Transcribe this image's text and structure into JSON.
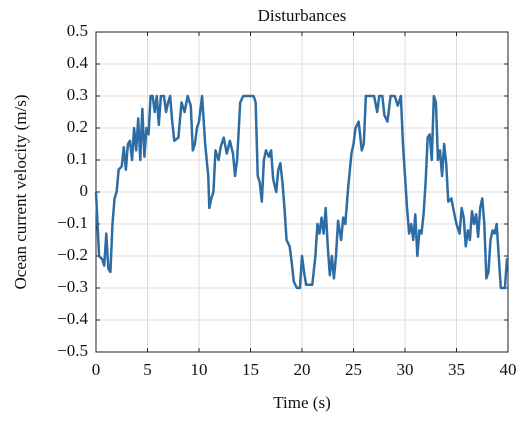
{
  "chart_data": {
    "type": "line",
    "title": "Disturbances",
    "x_label": "Time (s)",
    "y_label": "Ocean current velocity (m/s)",
    "color": "#2e6da4",
    "grid": true,
    "xlim": [
      0,
      40
    ],
    "xticks": [
      0,
      5,
      10,
      15,
      20,
      25,
      30,
      35,
      40
    ],
    "ylim": [
      -0.5,
      0.5
    ],
    "yticks": [
      {
        "value": -0.5,
        "label": "−0.5"
      },
      {
        "value": -0.4,
        "label": "−0.4"
      },
      {
        "value": -0.3,
        "label": "−0.3"
      },
      {
        "value": -0.2,
        "label": "−0.2"
      },
      {
        "value": -0.1,
        "label": "−0.1"
      },
      0,
      0.1,
      0.2,
      0.3,
      0.4,
      0.5
    ],
    "x": [
      0,
      0.3,
      0.6,
      0.8,
      1.0,
      1.2,
      1.4,
      1.6,
      1.8,
      2.0,
      2.2,
      2.5,
      2.7,
      2.9,
      3.1,
      3.3,
      3.5,
      3.7,
      3.9,
      4.1,
      4.3,
      4.5,
      4.7,
      4.9,
      5.1,
      5.3,
      5.5,
      5.7,
      5.9,
      6.1,
      6.3,
      6.6,
      6.8,
      7.0,
      7.2,
      7.4,
      7.6,
      8.0,
      8.3,
      8.6,
      8.9,
      9.2,
      9.4,
      9.6,
      9.8,
      10.0,
      10.3,
      10.6,
      10.9,
      11.0,
      11.2,
      11.4,
      11.6,
      11.9,
      12.1,
      12.4,
      12.7,
      13.0,
      13.3,
      13.5,
      13.7,
      14.0,
      14.3,
      14.8,
      15.3,
      15.5,
      15.7,
      15.9,
      16.1,
      16.3,
      16.5,
      16.8,
      17.0,
      17.2,
      17.5,
      17.7,
      17.9,
      18.1,
      18.3,
      18.5,
      18.8,
      19.0,
      19.2,
      19.5,
      19.8,
      20.0,
      20.2,
      20.4,
      21.0,
      21.3,
      21.5,
      21.7,
      21.9,
      22.1,
      22.3,
      22.5,
      22.7,
      22.9,
      23.1,
      23.3,
      23.5,
      23.8,
      24.0,
      24.2,
      24.5,
      24.8,
      25.0,
      25.2,
      25.5,
      25.8,
      26.0,
      26.2,
      26.6,
      27.0,
      27.3,
      27.5,
      27.8,
      28.0,
      28.3,
      28.6,
      29.0,
      29.3,
      29.6,
      29.8,
      30.0,
      30.2,
      30.4,
      30.6,
      30.8,
      31.0,
      31.2,
      31.4,
      31.6,
      31.8,
      32.0,
      32.2,
      32.4,
      32.6,
      32.8,
      33.0,
      33.2,
      33.4,
      33.6,
      33.8,
      34.0,
      34.2,
      34.5,
      34.8,
      35.0,
      35.3,
      35.5,
      35.7,
      35.9,
      36.1,
      36.3,
      36.5,
      36.7,
      36.9,
      37.1,
      37.3,
      37.5,
      37.7,
      37.9,
      38.1,
      38.3,
      38.5,
      38.7,
      38.9,
      39.1,
      39.3,
      39.7,
      39.9,
      40.0
    ],
    "values": [
      0.0,
      -0.2,
      -0.21,
      -0.23,
      -0.13,
      -0.24,
      -0.25,
      -0.1,
      -0.02,
      0.0,
      0.07,
      0.08,
      0.14,
      0.07,
      0.15,
      0.16,
      0.1,
      0.2,
      0.13,
      0.23,
      0.1,
      0.26,
      0.11,
      0.2,
      0.18,
      0.3,
      0.3,
      0.25,
      0.3,
      0.21,
      0.3,
      0.3,
      0.25,
      0.28,
      0.3,
      0.22,
      0.16,
      0.17,
      0.28,
      0.25,
      0.3,
      0.27,
      0.13,
      0.15,
      0.2,
      0.22,
      0.3,
      0.15,
      0.05,
      -0.05,
      -0.02,
      0.0,
      0.13,
      0.1,
      0.14,
      0.17,
      0.12,
      0.16,
      0.12,
      0.05,
      0.1,
      0.28,
      0.3,
      0.3,
      0.3,
      0.28,
      0.05,
      0.03,
      -0.03,
      0.1,
      0.13,
      0.11,
      0.13,
      0.04,
      0.0,
      0.07,
      0.09,
      0.03,
      -0.05,
      -0.15,
      -0.17,
      -0.22,
      -0.28,
      -0.3,
      -0.3,
      -0.2,
      -0.25,
      -0.29,
      -0.29,
      -0.2,
      -0.1,
      -0.13,
      -0.08,
      -0.13,
      -0.05,
      -0.17,
      -0.26,
      -0.2,
      -0.27,
      -0.2,
      -0.09,
      -0.15,
      -0.08,
      -0.1,
      0.02,
      0.12,
      0.15,
      0.2,
      0.22,
      0.13,
      0.15,
      0.3,
      0.3,
      0.3,
      0.25,
      0.3,
      0.3,
      0.24,
      0.22,
      0.3,
      0.3,
      0.27,
      0.3,
      0.15,
      0.05,
      -0.05,
      -0.13,
      -0.1,
      -0.15,
      -0.07,
      -0.2,
      -0.12,
      -0.13,
      -0.07,
      0.03,
      0.17,
      0.18,
      0.1,
      0.3,
      0.28,
      0.1,
      0.13,
      0.05,
      0.15,
      0.09,
      -0.03,
      -0.02,
      -0.07,
      -0.1,
      -0.13,
      -0.05,
      -0.08,
      -0.17,
      -0.12,
      -0.15,
      -0.06,
      -0.1,
      -0.07,
      -0.14,
      -0.05,
      -0.02,
      -0.1,
      -0.27,
      -0.25,
      -0.15,
      -0.12,
      -0.13,
      -0.1,
      -0.2,
      -0.3,
      -0.3,
      -0.21,
      -0.21
    ]
  }
}
